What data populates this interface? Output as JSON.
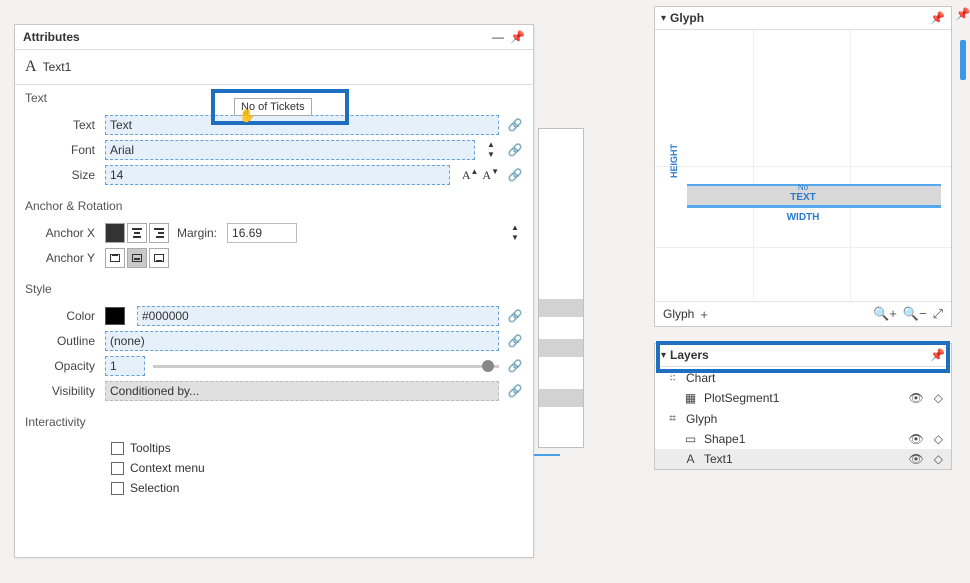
{
  "attr": {
    "panel_title": "Attributes",
    "element_name": "Text1",
    "drag_hint": "No of Tickets",
    "sections": {
      "text_hdr": "Text",
      "anchor_hdr": "Anchor & Rotation",
      "style_hdr": "Style",
      "interactivity_hdr": "Interactivity"
    },
    "fields": {
      "text_label": "Text",
      "text_value": "Text",
      "font_label": "Font",
      "font_value": "Arial",
      "size_label": "Size",
      "size_value": "14",
      "anchorx_label": "Anchor X",
      "margin_label": "Margin:",
      "margin_value": "16.69",
      "anchory_label": "Anchor Y",
      "color_label": "Color",
      "color_value": "#000000",
      "color_swatch": "#000000",
      "outline_label": "Outline",
      "outline_value": "(none)",
      "opacity_label": "Opacity",
      "opacity_value": "1",
      "opacity_pct": 95,
      "visibility_label": "Visibility",
      "visibility_value": "Conditioned by..."
    },
    "checks": {
      "tooltips": "Tooltips",
      "contextmenu": "Context menu",
      "selection": "Selection"
    }
  },
  "glyph": {
    "panel_title": "Glyph",
    "footer_label": "Glyph",
    "tiny": "No",
    "text_label": "TEXT",
    "width_label": "WIDTH",
    "height_label": "HEIGHT"
  },
  "layers": {
    "panel_title": "Layers",
    "items": [
      {
        "icon": "chart",
        "label": "Chart",
        "indent": false,
        "sel": false,
        "actions": false
      },
      {
        "icon": "grid",
        "label": "PlotSegment1",
        "indent": true,
        "sel": false,
        "actions": true
      },
      {
        "icon": "glyph",
        "label": "Glyph",
        "indent": false,
        "sel": false,
        "actions": false
      },
      {
        "icon": "rect",
        "label": "Shape1",
        "indent": true,
        "sel": false,
        "actions": true
      },
      {
        "icon": "text",
        "label": "Text1",
        "indent": true,
        "sel": true,
        "actions": true
      }
    ]
  }
}
